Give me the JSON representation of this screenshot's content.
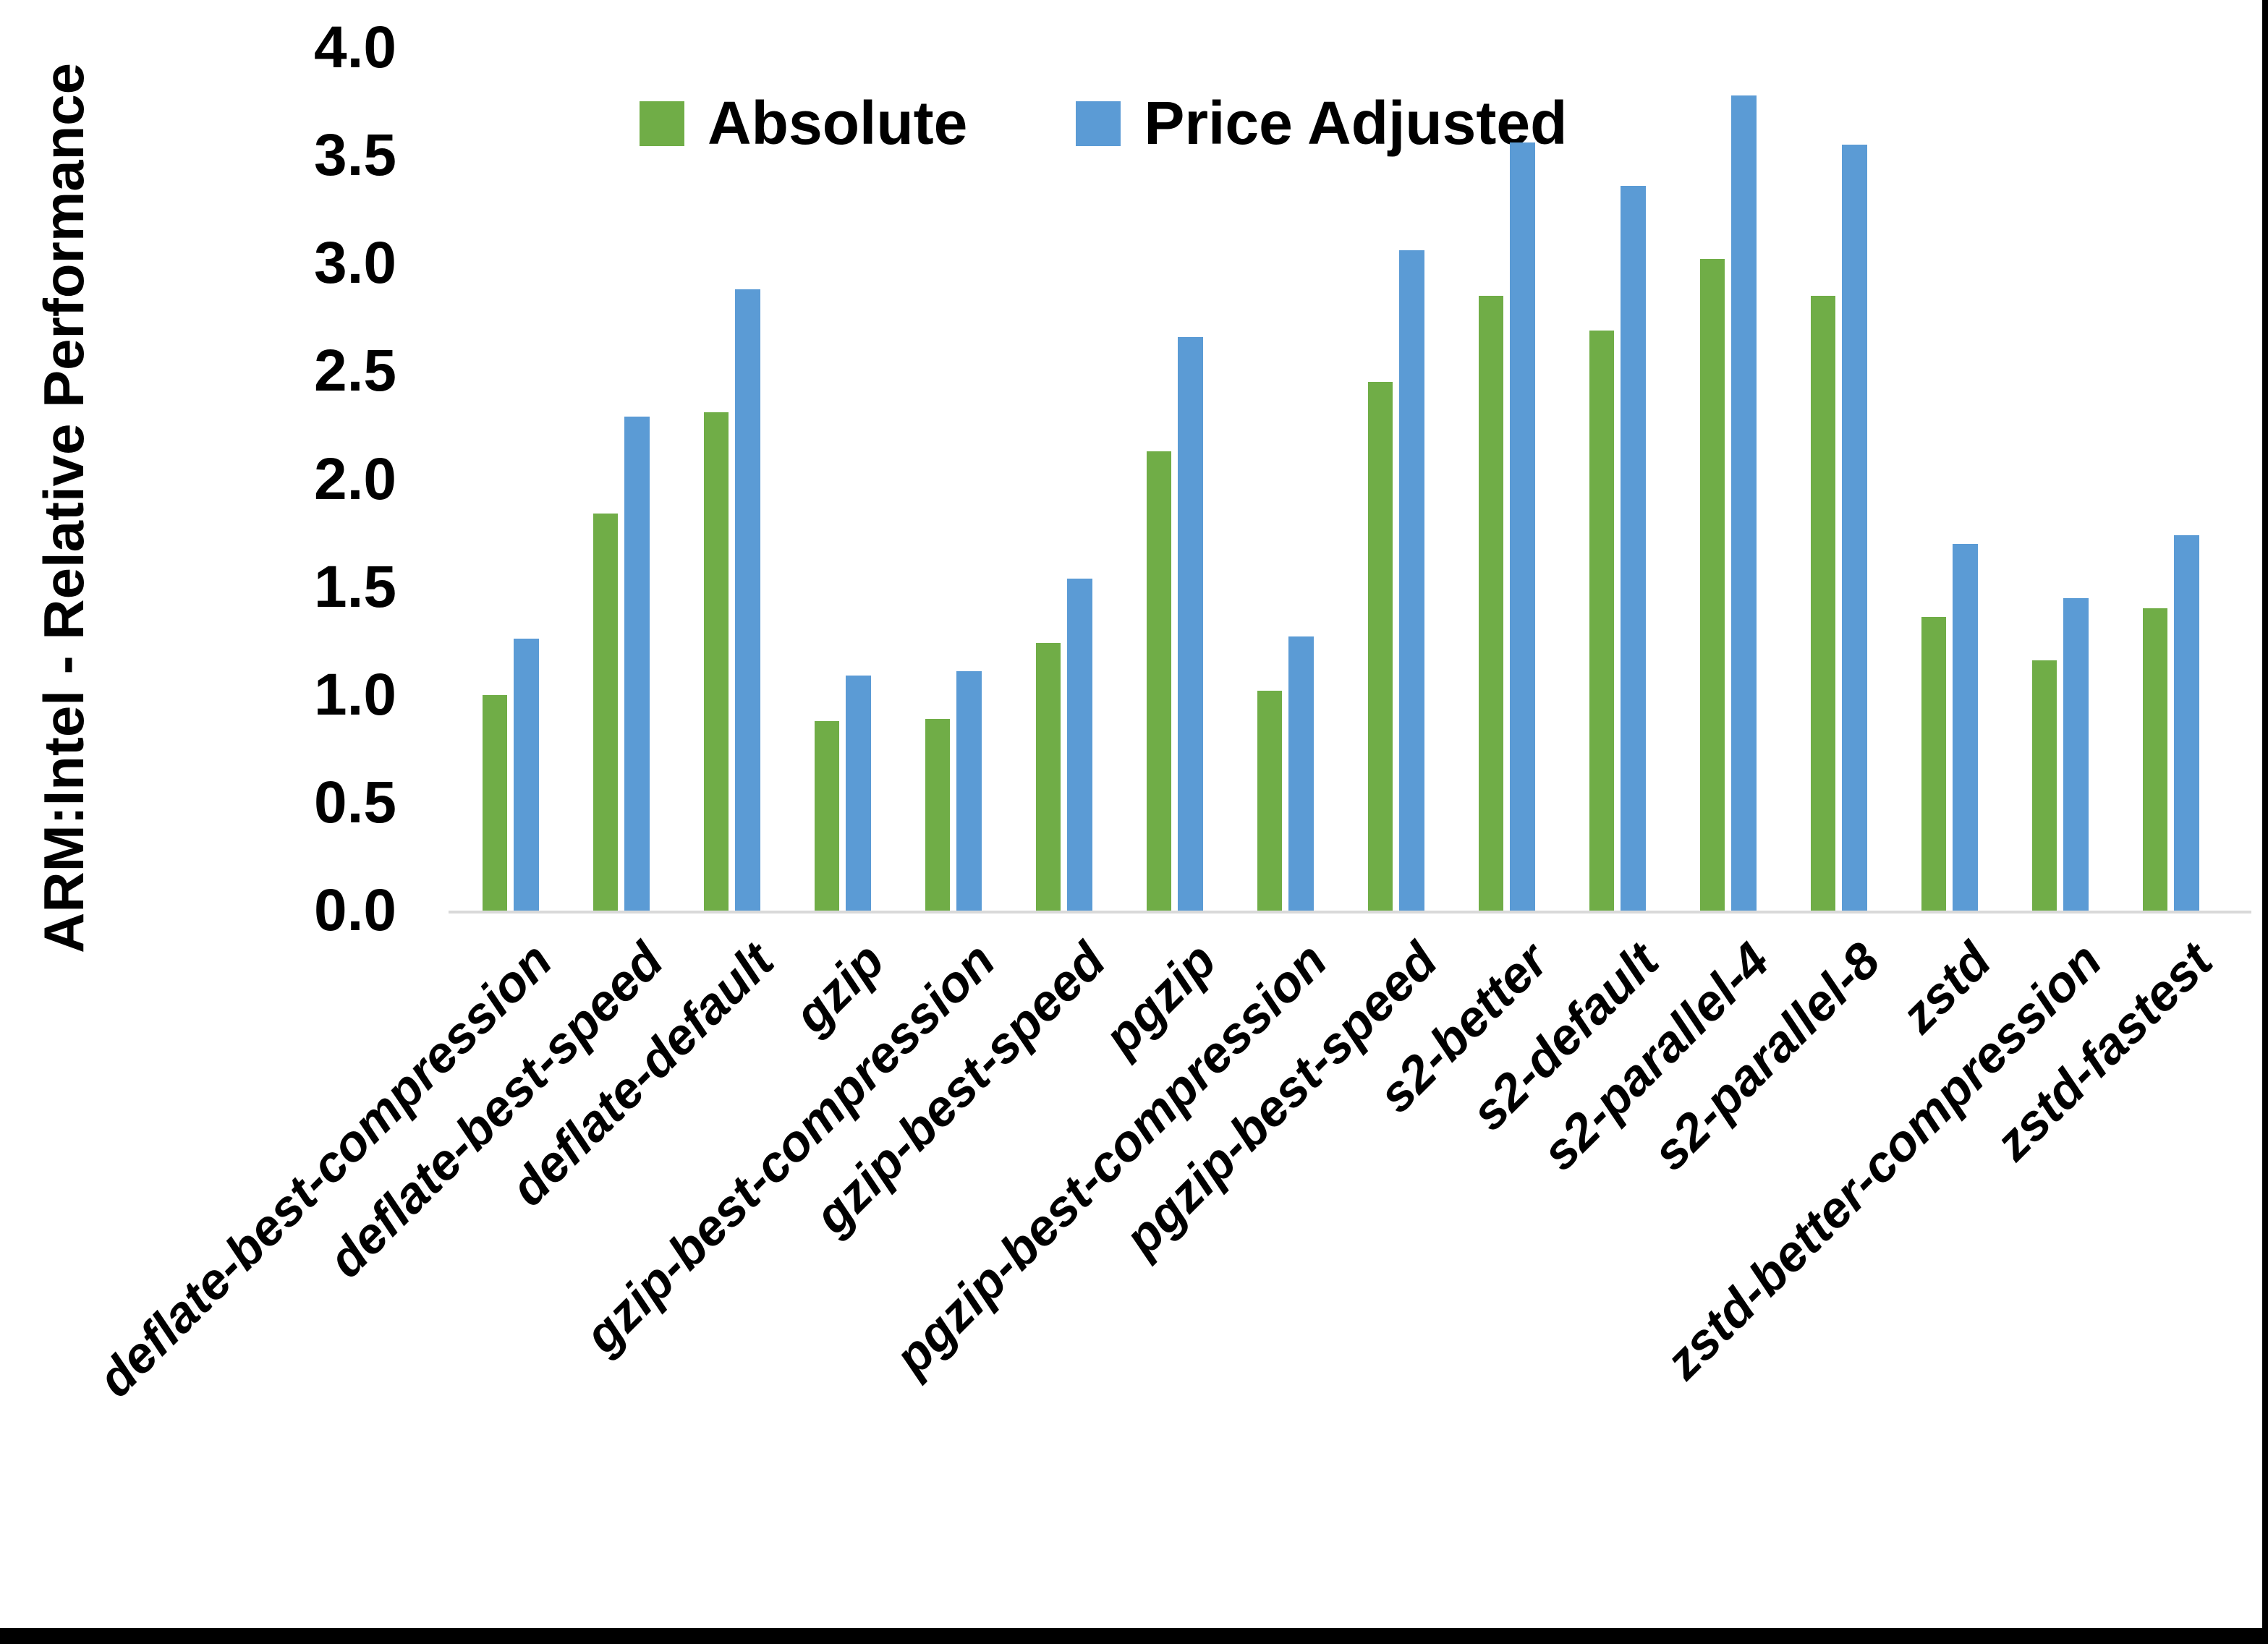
{
  "y_axis": {
    "title": "ARM:Intel - Relative Performance",
    "ticks": [
      "4.0",
      "3.5",
      "3.0",
      "2.5",
      "2.0",
      "1.5",
      "1.0",
      "0.5",
      "0.0"
    ]
  },
  "chart_data": {
    "type": "bar",
    "title": "",
    "xlabel": "",
    "ylabel": "ARM:Intel - Relative Performance",
    "ylim": [
      0,
      4
    ],
    "y_tick_step": 0.5,
    "grid": false,
    "legend_position": "top-center",
    "categories": [
      "deflate-best-compression",
      "deflate-best-speed",
      "deflate-default",
      "gzip",
      "gzip-best-compression",
      "gzip-best-speed",
      "pgzip",
      "pgzip-best-compression",
      "pgzip-best-speed",
      "s2-better",
      "s2-default",
      "s2-parallel-4",
      "s2-parallel-8",
      "zstd",
      "zstd-better-compression",
      "zstd-fastest"
    ],
    "series": [
      {
        "name": "Absolute",
        "color": "#70AD47",
        "values": [
          1.0,
          1.84,
          2.31,
          0.88,
          0.89,
          1.24,
          2.13,
          1.02,
          2.45,
          2.85,
          2.69,
          3.02,
          2.85,
          1.36,
          1.16,
          1.4
        ]
      },
      {
        "name": "Price Adjusted",
        "color": "#5B9BD5",
        "values": [
          1.26,
          2.29,
          2.88,
          1.09,
          1.11,
          1.54,
          2.66,
          1.27,
          3.06,
          3.56,
          3.36,
          3.78,
          3.55,
          1.7,
          1.45,
          1.74
        ]
      }
    ]
  },
  "colors": {
    "background": "#FFFFFF",
    "axis_line": "#D9D9D9",
    "text": "#000000",
    "screen_edge": "#000000"
  }
}
